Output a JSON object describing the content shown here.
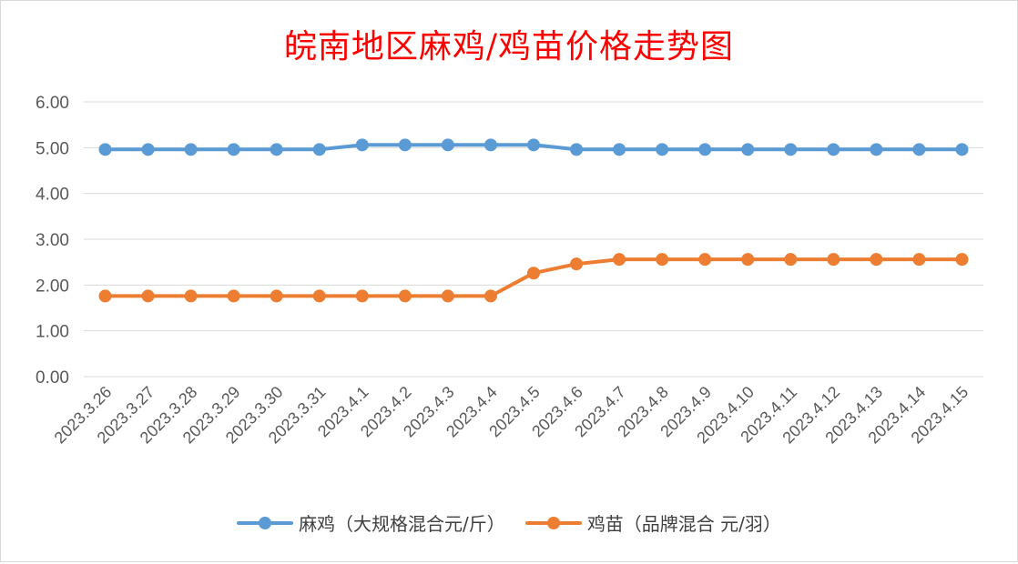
{
  "chart_data": {
    "type": "line",
    "title": "皖南地区麻鸡/鸡苗价格走势图",
    "categories": [
      "2023.3.26",
      "2023.3.27",
      "2023.3.28",
      "2023.3.29",
      "2023.3.30",
      "2023.3.31",
      "2023.4.1",
      "2023.4.2",
      "2023.4.3",
      "2023.4.4",
      "2023.4.5",
      "2023.4.6",
      "2023.4.7",
      "2023.4.8",
      "2023.4.9",
      "2023.4.10",
      "2023.4.11",
      "2023.4.12",
      "2023.4.13",
      "2023.4.14",
      "2023.4.15"
    ],
    "y_ticks": [
      "0.00",
      "1.00",
      "2.00",
      "3.00",
      "4.00",
      "5.00",
      "6.00"
    ],
    "ylim": [
      0,
      6
    ],
    "grid": true,
    "legend_position": "bottom",
    "series": [
      {
        "name": "麻鸡（大规格混合元/斤）",
        "color": "#5b9bd5",
        "values": [
          4.96,
          4.96,
          4.96,
          4.96,
          4.96,
          4.96,
          5.06,
          5.06,
          5.06,
          5.06,
          5.06,
          4.96,
          4.96,
          4.96,
          4.96,
          4.96,
          4.96,
          4.96,
          4.96,
          4.96,
          4.96
        ]
      },
      {
        "name": "鸡苗（品牌混合 元/羽）",
        "color": "#ed7d31",
        "values": [
          1.76,
          1.76,
          1.76,
          1.76,
          1.76,
          1.76,
          1.76,
          1.76,
          1.76,
          1.76,
          2.26,
          2.46,
          2.56,
          2.56,
          2.56,
          2.56,
          2.56,
          2.56,
          2.56,
          2.56,
          2.56
        ]
      }
    ]
  }
}
